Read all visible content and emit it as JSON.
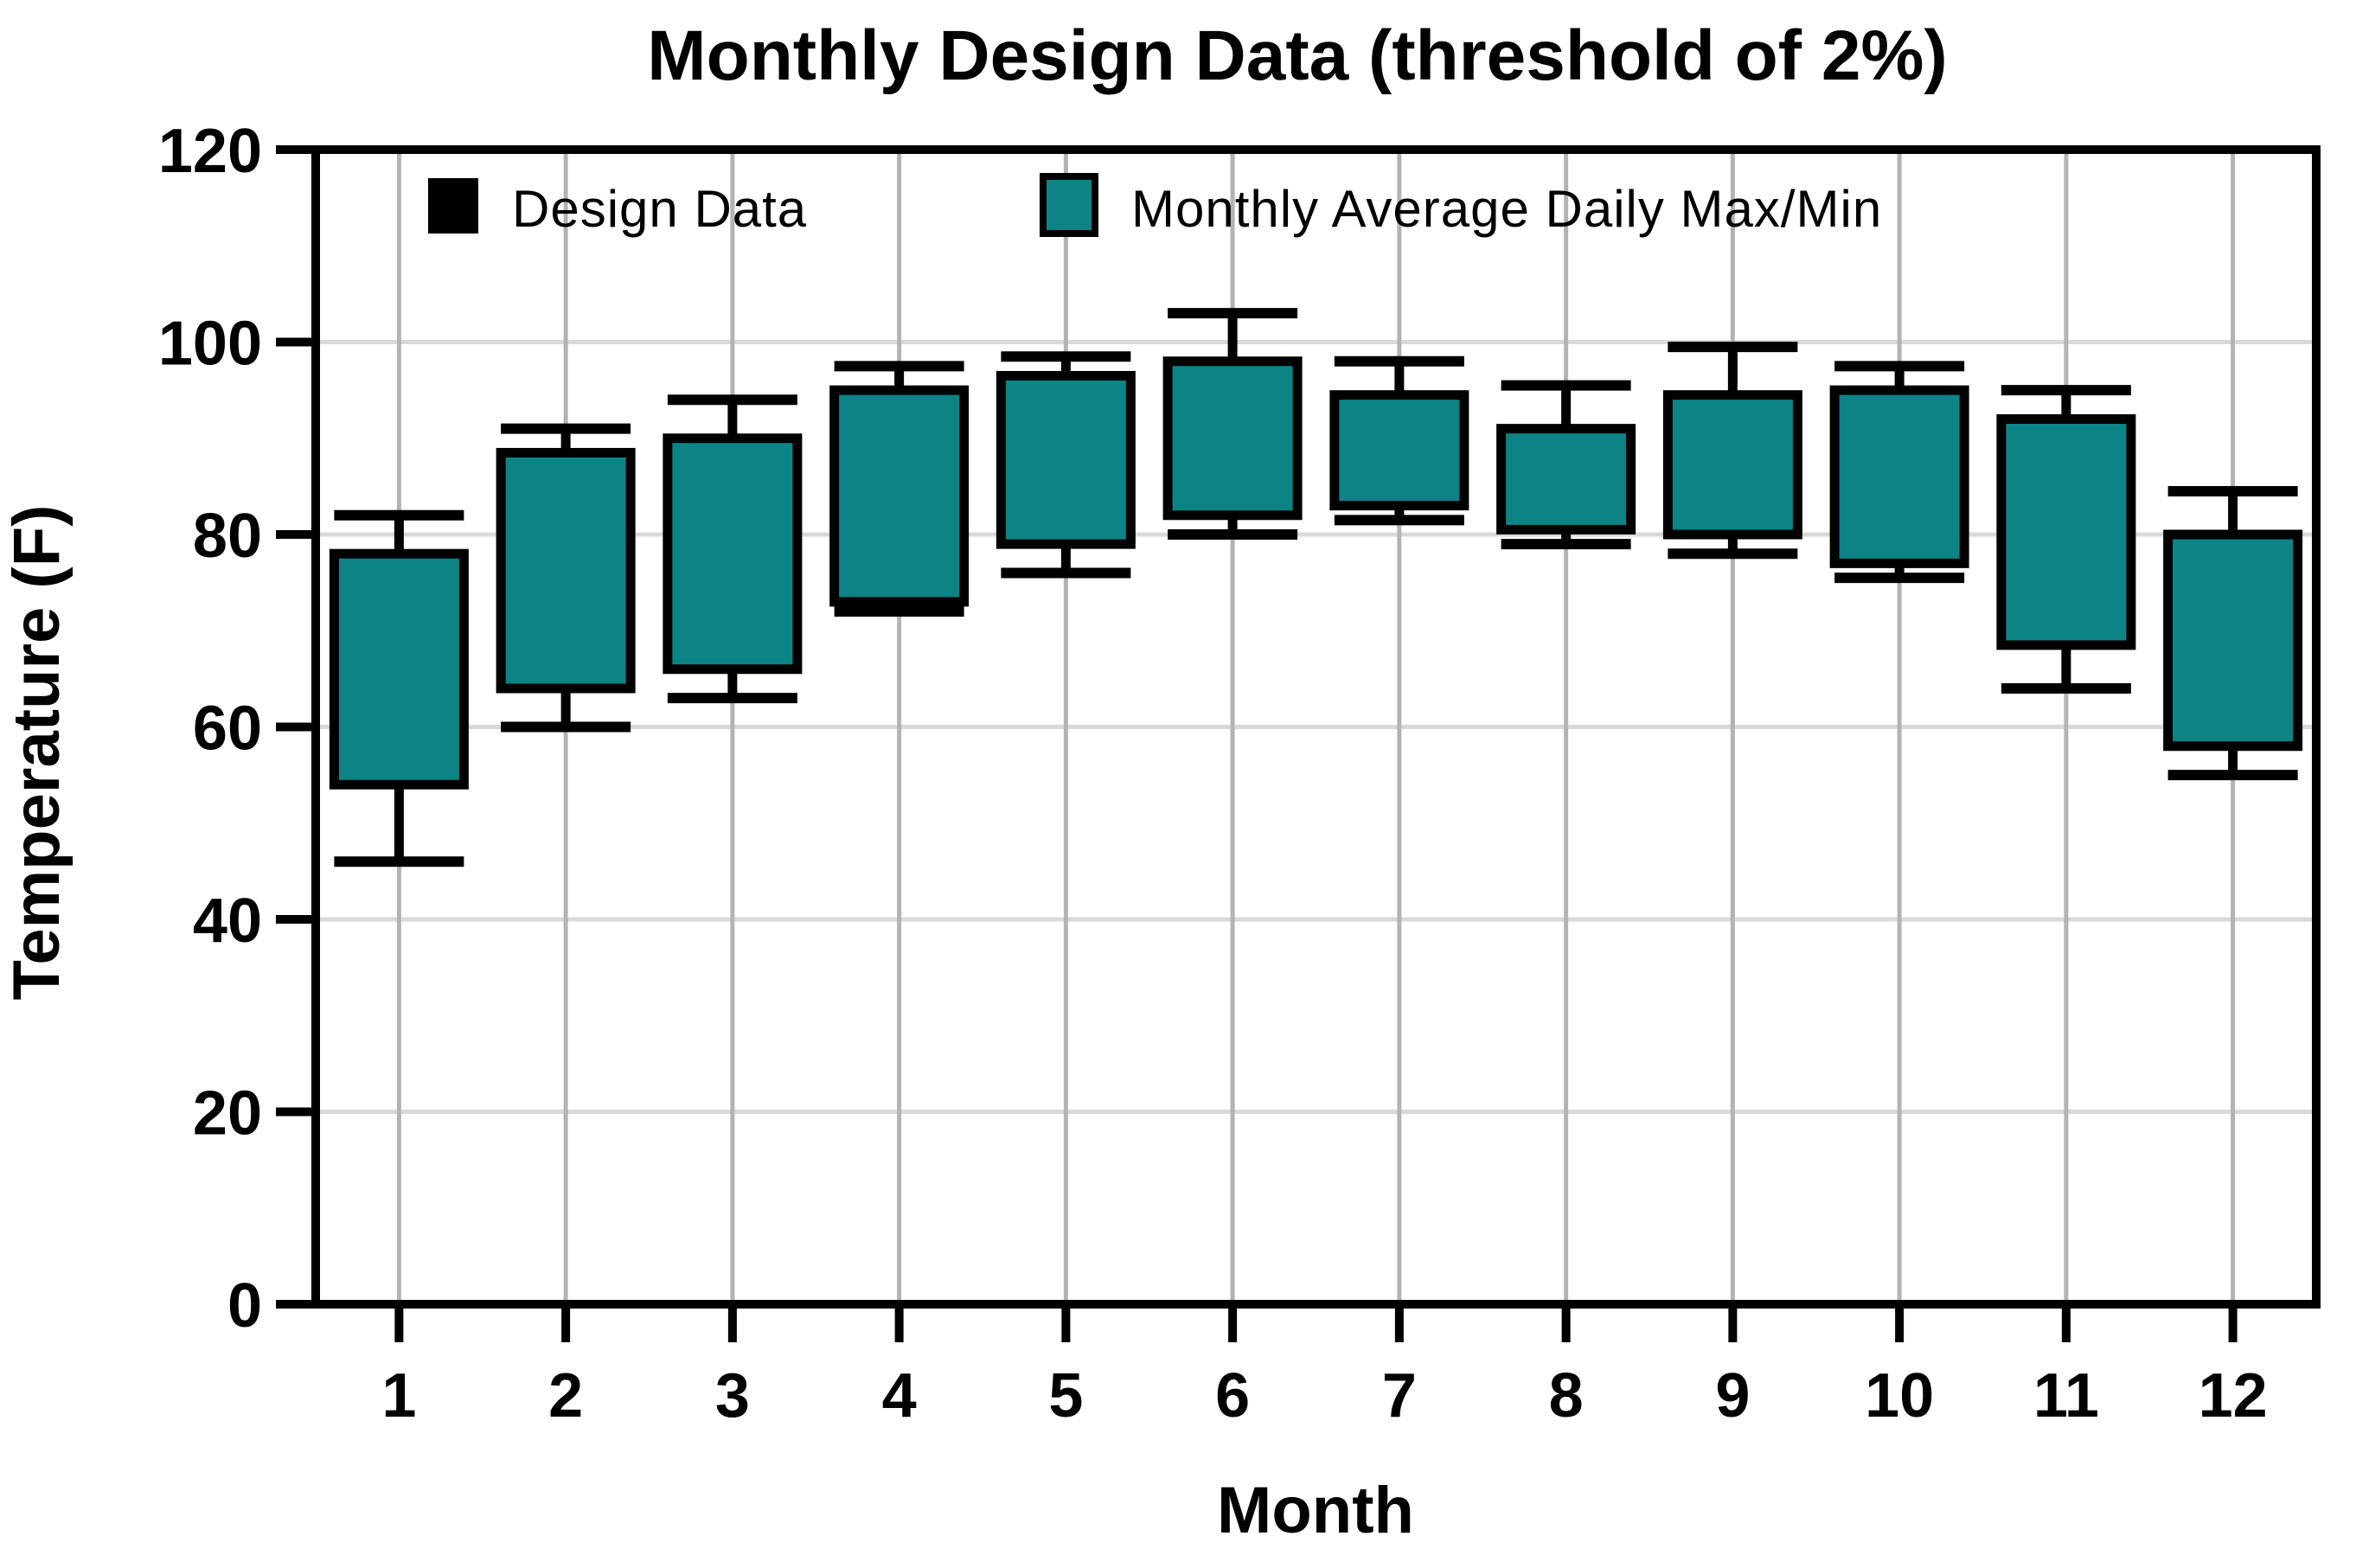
{
  "title": "Monthly Design Data (threshold of 2%)",
  "y_axis": {
    "label": "Temperature (F)",
    "ticks": [
      "120",
      "100",
      "80",
      "60",
      "40",
      "20",
      "0"
    ]
  },
  "x_axis": {
    "label": "Month",
    "ticks": [
      "1",
      "2",
      "3",
      "4",
      "5",
      "6",
      "7",
      "8",
      "9",
      "10",
      "11",
      "12"
    ]
  },
  "legend": {
    "items": [
      {
        "label": "Design Data",
        "color": "#000000"
      },
      {
        "label": "Monthly Average Daily Max/Min",
        "color": "#0C8486"
      }
    ]
  },
  "colors": {
    "box_fill": "#0C8486",
    "line": "#000000",
    "h_grid": "#D9D9D9",
    "v_grid": "#B3B3B3",
    "background": "#FFFFFF"
  },
  "chart_data": {
    "type": "box",
    "title": "Monthly Design Data (threshold of 2%)",
    "xlabel": "Month",
    "ylabel": "Temperature (F)",
    "ylim": [
      0,
      120
    ],
    "ytick_step": 20,
    "grid": true,
    "legend_position": "top-inside",
    "categories": [
      1,
      2,
      3,
      4,
      5,
      6,
      7,
      8,
      9,
      10,
      11,
      12
    ],
    "series": [
      {
        "name": "Design Data",
        "mark": "whisker-caps",
        "color": "#000000",
        "max": [
          82,
          91,
          94,
          97.5,
          98.5,
          103,
          98,
          95.5,
          99.5,
          97.5,
          95,
          84.5
        ],
        "min": [
          46,
          60,
          63,
          72,
          76,
          80,
          81.5,
          79,
          78,
          75.5,
          64,
          55
        ]
      },
      {
        "name": "Monthly Average Daily Max/Min",
        "mark": "box",
        "color": "#0C8486",
        "max": [
          78,
          88.5,
          90,
          95,
          96.5,
          98,
          94.5,
          91,
          94.5,
          95,
          92,
          80
        ],
        "min": [
          54,
          64,
          66,
          73,
          79,
          82,
          83,
          80.5,
          80,
          77,
          68.5,
          58
        ]
      }
    ]
  }
}
